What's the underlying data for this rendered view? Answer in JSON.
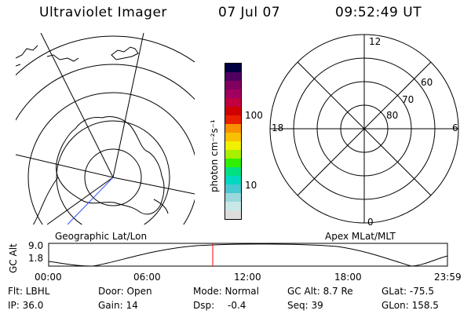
{
  "header": {
    "instrument": "Ultraviolet Imager",
    "date": "07 Jul 07",
    "time": "09:52:49 UT"
  },
  "colorbar": {
    "unit_label": "photon cm⁻²s⁻¹",
    "tick_100": "100",
    "tick_10": "10",
    "colors": [
      "#dddddd",
      "#c8e8e8",
      "#9ad8dc",
      "#48c8d0",
      "#00d8c0",
      "#00e080",
      "#30f000",
      "#a8f000",
      "#f0f000",
      "#f8c000",
      "#f89000",
      "#e82000",
      "#d00000",
      "#c00040",
      "#a00060",
      "#800060",
      "#500060",
      "#000040"
    ]
  },
  "left_panel": {
    "label": "Geographic Lat/Lon"
  },
  "right_panel": {
    "label": "Apex MLat/MLT",
    "mlt_top": "12",
    "mlt_left": "18",
    "mlt_right": "6",
    "mlt_bottom": "0",
    "lat_60": "60",
    "lat_70": "70",
    "lat_80": "80"
  },
  "altitude_plot": {
    "ylabel": "GC Alt",
    "y_top": "9.0",
    "y_bottom": "1.8",
    "x_ticks": [
      "00:00",
      "06:00",
      "12:00",
      "18:00",
      "23:59"
    ],
    "marker_color": "#ff0000"
  },
  "info": {
    "flt": "Flt: LBHL",
    "ip": "IP: 36.0",
    "door": "Door: Open",
    "gain": "Gain: 14",
    "mode": "Mode: Normal",
    "dsp_label": "Dsp:",
    "dsp_value": "-0.4",
    "gc_alt": "GC Alt: 8.7 Re",
    "seq": "Seq: 39",
    "glat": "GLat: -75.5",
    "glon": "GLon: 158.5"
  }
}
